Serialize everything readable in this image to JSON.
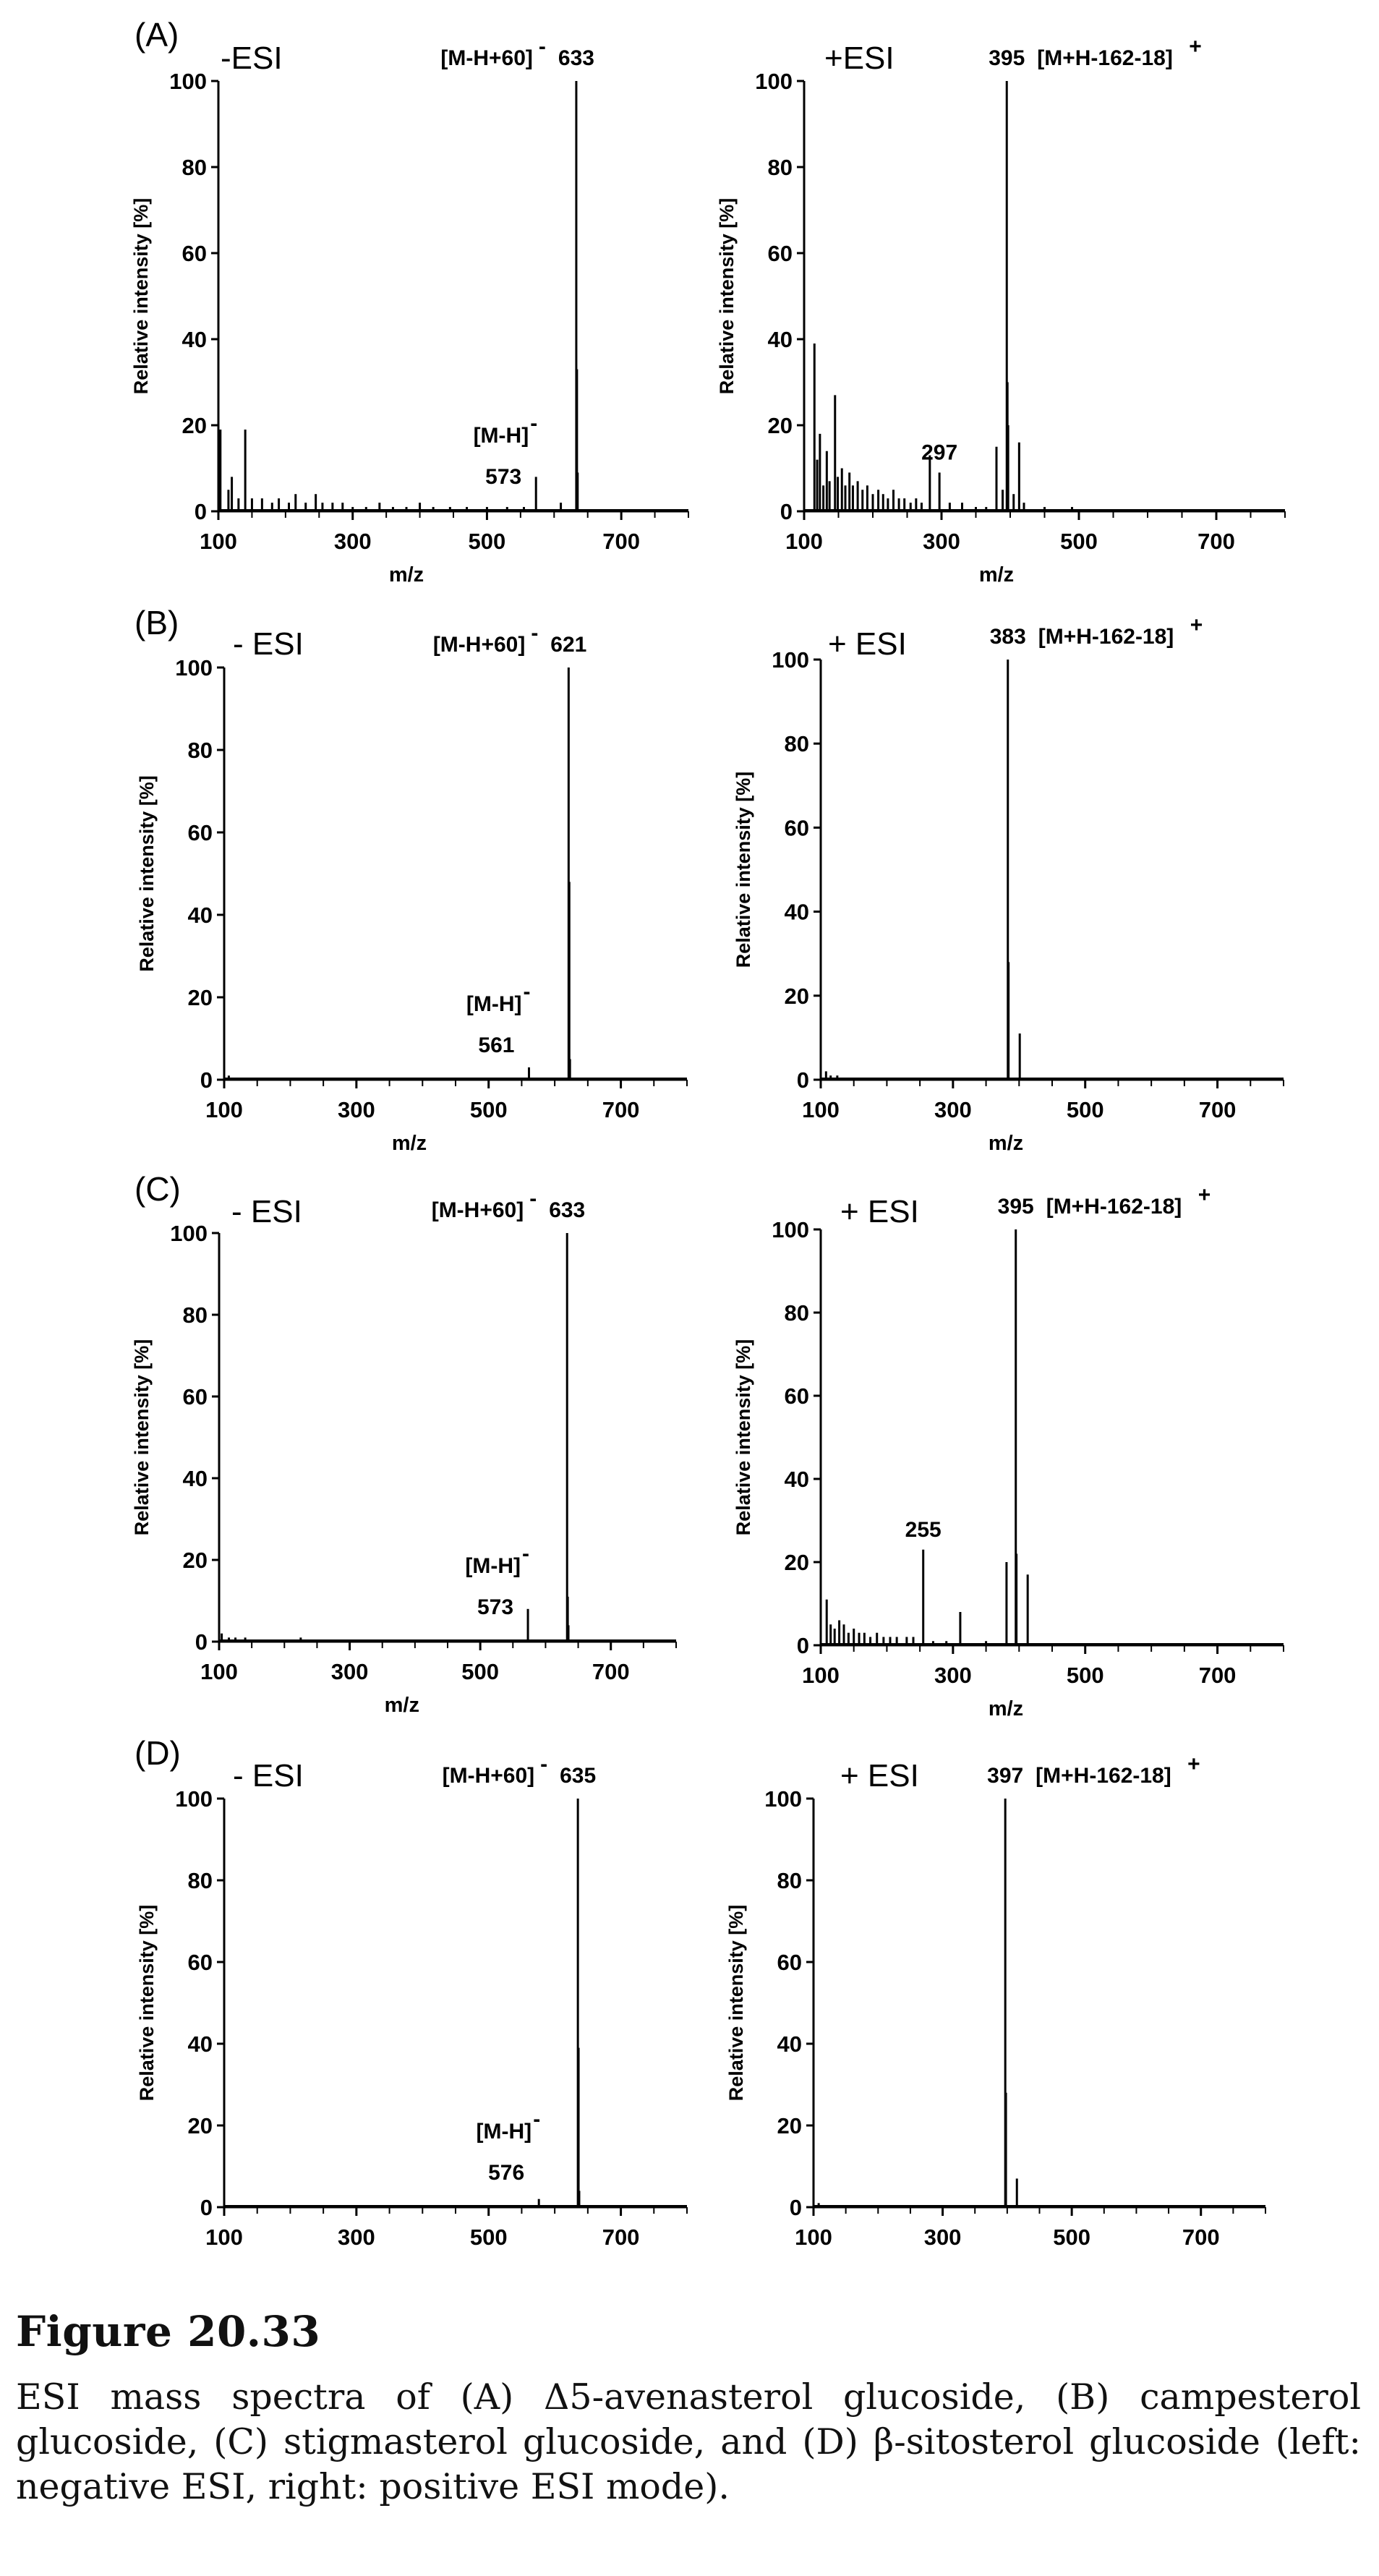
{
  "figure": {
    "title": "Figure 20.33",
    "caption": "ESI mass spectra of (A) Δ5-avenasterol glucoside, (B) campesterol glucoside, (C) stigmasterol glucoside, and (D) β-sitosterol glucoside (left: negative ESI, right: positive ESI mode)."
  },
  "chart_data": [
    {
      "type": "bar",
      "panel": "(A)",
      "mode": "-ESI",
      "xlabel": "m/z",
      "ylabel": "Relative intensity [%]",
      "xlim": [
        100,
        800
      ],
      "ylim": [
        0,
        100
      ],
      "xticks": [
        100,
        300,
        500,
        700
      ],
      "yticks": [
        0,
        20,
        40,
        60,
        80,
        100
      ],
      "annotations": [
        {
          "text": "[M-H+60]",
          "sup": "-",
          "role": "ion"
        },
        {
          "text": "633",
          "role": "mz",
          "x": 633
        },
        {
          "text": "[M-H]",
          "sup": "-",
          "role": "ion"
        },
        {
          "text": "573",
          "role": "mz",
          "x": 573
        }
      ],
      "peaks": [
        [
          633,
          100
        ],
        [
          634,
          33
        ],
        [
          635,
          9
        ],
        [
          573,
          8
        ],
        [
          610,
          2
        ],
        [
          103,
          19
        ],
        [
          140,
          19
        ],
        [
          115,
          5
        ],
        [
          120,
          8
        ],
        [
          130,
          3
        ],
        [
          150,
          3
        ],
        [
          165,
          3
        ],
        [
          180,
          2
        ],
        [
          190,
          3
        ],
        [
          205,
          2
        ],
        [
          215,
          4
        ],
        [
          230,
          2
        ],
        [
          245,
          4
        ],
        [
          255,
          2
        ],
        [
          270,
          2
        ],
        [
          285,
          2
        ],
        [
          300,
          1
        ],
        [
          320,
          1
        ],
        [
          340,
          2
        ],
        [
          360,
          1
        ],
        [
          380,
          1
        ],
        [
          400,
          2
        ],
        [
          420,
          1
        ],
        [
          445,
          1
        ],
        [
          470,
          1
        ],
        [
          500,
          1
        ],
        [
          530,
          1
        ],
        [
          555,
          1
        ]
      ]
    },
    {
      "type": "bar",
      "panel": "(A)",
      "mode": "+ESI",
      "xlabel": "m/z",
      "ylabel": "Relative intensity [%]",
      "xlim": [
        100,
        800
      ],
      "ylim": [
        0,
        100
      ],
      "xticks": [
        100,
        300,
        500,
        700
      ],
      "yticks": [
        0,
        20,
        40,
        60,
        80,
        100
      ],
      "annotations": [
        {
          "text": "395",
          "role": "mz",
          "x": 395
        },
        {
          "text": "[M+H-162-18]",
          "sup": "+",
          "role": "ion"
        },
        {
          "text": "297",
          "role": "mz",
          "x": 297
        }
      ],
      "peaks": [
        [
          395,
          100
        ],
        [
          396,
          30
        ],
        [
          397,
          20
        ],
        [
          413,
          16
        ],
        [
          380,
          15
        ],
        [
          389,
          5
        ],
        [
          405,
          4
        ],
        [
          420,
          2
        ],
        [
          115,
          39
        ],
        [
          119,
          12
        ],
        [
          123,
          18
        ],
        [
          128,
          6
        ],
        [
          133,
          14
        ],
        [
          137,
          7
        ],
        [
          145,
          27
        ],
        [
          149,
          8
        ],
        [
          155,
          10
        ],
        [
          160,
          6
        ],
        [
          166,
          9
        ],
        [
          171,
          6
        ],
        [
          178,
          7
        ],
        [
          185,
          5
        ],
        [
          192,
          6
        ],
        [
          200,
          4
        ],
        [
          208,
          5
        ],
        [
          215,
          4
        ],
        [
          222,
          3
        ],
        [
          230,
          5
        ],
        [
          238,
          3
        ],
        [
          246,
          3
        ],
        [
          255,
          2
        ],
        [
          263,
          3
        ],
        [
          271,
          2
        ],
        [
          283,
          13
        ],
        [
          297,
          9
        ],
        [
          312,
          2
        ],
        [
          330,
          2
        ],
        [
          350,
          1
        ],
        [
          365,
          1
        ],
        [
          450,
          1
        ],
        [
          490,
          1
        ]
      ]
    },
    {
      "type": "bar",
      "panel": "(B)",
      "mode": "- ESI",
      "xlabel": "m/z",
      "ylabel": "Relative intensity [%]",
      "xlim": [
        100,
        800
      ],
      "ylim": [
        0,
        100
      ],
      "xticks": [
        100,
        300,
        500,
        700
      ],
      "yticks": [
        0,
        20,
        40,
        60,
        80,
        100
      ],
      "annotations": [
        {
          "text": "[M-H+60]",
          "sup": "-",
          "role": "ion"
        },
        {
          "text": "621",
          "role": "mz",
          "x": 621
        },
        {
          "text": "[M-H]",
          "sup": "-",
          "role": "ion"
        },
        {
          "text": "561",
          "role": "mz",
          "x": 561
        }
      ],
      "peaks": [
        [
          621,
          100
        ],
        [
          622,
          48
        ],
        [
          623,
          5
        ],
        [
          561,
          3
        ],
        [
          107,
          1
        ],
        [
          180,
          0.5
        ],
        [
          250,
          0.5
        ],
        [
          320,
          0.5
        ],
        [
          400,
          0.5
        ],
        [
          480,
          0.5
        ]
      ]
    },
    {
      "type": "bar",
      "panel": "(B)",
      "mode": "+ ESI",
      "xlabel": "m/z",
      "ylabel": "Relative intensity [%]",
      "xlim": [
        100,
        800
      ],
      "ylim": [
        0,
        100
      ],
      "xticks": [
        100,
        300,
        500,
        700
      ],
      "yticks": [
        0,
        20,
        40,
        60,
        80,
        100
      ],
      "annotations": [
        {
          "text": "383",
          "role": "mz",
          "x": 383
        },
        {
          "text": "[M+H-162-18]",
          "sup": "+",
          "role": "ion"
        }
      ],
      "peaks": [
        [
          383,
          100
        ],
        [
          384,
          28
        ],
        [
          401,
          11
        ],
        [
          108,
          2
        ],
        [
          115,
          1
        ],
        [
          125,
          1
        ],
        [
          200,
          0.5
        ],
        [
          300,
          0.5
        ]
      ]
    },
    {
      "type": "bar",
      "panel": "(C)",
      "mode": "- ESI",
      "xlabel": "m/z",
      "ylabel": "Relative intensity [%]",
      "xlim": [
        100,
        800
      ],
      "ylim": [
        0,
        100
      ],
      "xticks": [
        100,
        300,
        500,
        700
      ],
      "yticks": [
        0,
        20,
        40,
        60,
        80,
        100
      ],
      "annotations": [
        {
          "text": "[M-H+60]",
          "sup": "-",
          "role": "ion"
        },
        {
          "text": "633",
          "role": "mz",
          "x": 633
        },
        {
          "text": "[M-H]",
          "sup": "-",
          "role": "ion"
        },
        {
          "text": "573",
          "role": "mz",
          "x": 573
        }
      ],
      "peaks": [
        [
          633,
          100
        ],
        [
          634,
          11
        ],
        [
          635,
          4
        ],
        [
          573,
          8
        ],
        [
          104,
          2
        ],
        [
          115,
          1
        ],
        [
          125,
          1
        ],
        [
          140,
          1
        ],
        [
          225,
          1
        ],
        [
          300,
          0.5
        ],
        [
          400,
          0.5
        ]
      ]
    },
    {
      "type": "bar",
      "panel": "(C)",
      "mode": "+ ESI",
      "xlabel": "m/z",
      "ylabel": "Relative intensity [%]",
      "xlim": [
        100,
        800
      ],
      "ylim": [
        0,
        100
      ],
      "xticks": [
        100,
        300,
        500,
        700
      ],
      "yticks": [
        0,
        20,
        40,
        60,
        80,
        100
      ],
      "annotations": [
        {
          "text": "255",
          "role": "mz",
          "x": 255
        },
        {
          "text": "395",
          "role": "mz",
          "x": 395
        },
        {
          "text": "[M+H-162-18]",
          "sup": "+",
          "role": "ion"
        }
      ],
      "peaks": [
        [
          395,
          100
        ],
        [
          396,
          22
        ],
        [
          381,
          20
        ],
        [
          413,
          17
        ],
        [
          255,
          23
        ],
        [
          311,
          8
        ],
        [
          109,
          11
        ],
        [
          115,
          5
        ],
        [
          121,
          4
        ],
        [
          128,
          6
        ],
        [
          135,
          5
        ],
        [
          142,
          3
        ],
        [
          150,
          4
        ],
        [
          158,
          3
        ],
        [
          166,
          3
        ],
        [
          175,
          2
        ],
        [
          185,
          3
        ],
        [
          195,
          2
        ],
        [
          205,
          2
        ],
        [
          215,
          2
        ],
        [
          230,
          2
        ],
        [
          240,
          2
        ],
        [
          270,
          1
        ],
        [
          290,
          1
        ],
        [
          350,
          1
        ]
      ]
    },
    {
      "type": "bar",
      "panel": "(D)",
      "mode": "- ESI",
      "xlabel": "m/z",
      "ylabel": "Relative intensity [%]",
      "xlim": [
        100,
        800
      ],
      "ylim": [
        0,
        100
      ],
      "xticks": [
        100,
        300,
        500,
        700
      ],
      "yticks": [
        0,
        20,
        40,
        60,
        80,
        100
      ],
      "annotations": [
        {
          "text": "[M-H+60]",
          "sup": "-",
          "role": "ion"
        },
        {
          "text": "635",
          "role": "mz",
          "x": 635
        },
        {
          "text": "[M-H]",
          "sup": "-",
          "role": "ion"
        },
        {
          "text": "576",
          "role": "mz",
          "x": 576
        }
      ],
      "peaks": [
        [
          635,
          100
        ],
        [
          636,
          39
        ],
        [
          637,
          4
        ],
        [
          576,
          2
        ],
        [
          120,
          0.5
        ],
        [
          200,
          0.5
        ],
        [
          300,
          0.5
        ],
        [
          450,
          0.5
        ]
      ]
    },
    {
      "type": "bar",
      "panel": "(D)",
      "mode": "+ ESI",
      "xlabel": "m/z",
      "ylabel": "Relative intensity [%]",
      "xlim": [
        100,
        800
      ],
      "ylim": [
        0,
        100
      ],
      "xticks": [
        100,
        300,
        500,
        700
      ],
      "yticks": [
        0,
        20,
        40,
        60,
        80,
        100
      ],
      "annotations": [
        {
          "text": "397",
          "role": "mz",
          "x": 397
        },
        {
          "text": "[M+H-162-18]",
          "sup": "+",
          "role": "ion"
        }
      ],
      "peaks": [
        [
          397,
          100
        ],
        [
          398,
          28
        ],
        [
          415,
          7
        ],
        [
          108,
          1
        ],
        [
          120,
          0.5
        ],
        [
          300,
          0.5
        ],
        [
          350,
          0.5
        ]
      ]
    }
  ]
}
